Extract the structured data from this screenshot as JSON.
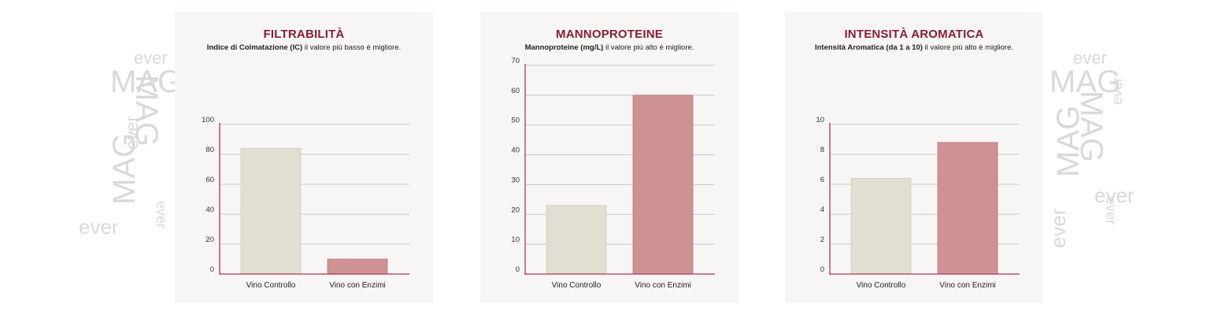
{
  "watermark": {
    "word1": "MAG",
    "word2": "ever",
    "color": "#d9d9d9"
  },
  "chart_data": [
    {
      "type": "bar",
      "title": "FILTRABILITÀ",
      "subtitle_bold": "Indice di Colmatazione (IC)",
      "subtitle_rest": " il valore più basso è migliore.",
      "categories": [
        "Vino Controllo",
        "Vino con Enzimi"
      ],
      "values": [
        84,
        10
      ],
      "colors": [
        "#e1dfd1",
        "#cf9293"
      ],
      "ylim": [
        0,
        100
      ],
      "yticks": [
        0,
        20,
        40,
        60,
        80,
        100
      ],
      "grid": true
    },
    {
      "type": "bar",
      "title": "MANNOPROTEINE",
      "subtitle_bold": "Mannoproteine (mg/L)",
      "subtitle_rest": " il valore più alto è migliore.",
      "categories": [
        "Vino Controllo",
        "Vino con Enzimi"
      ],
      "values": [
        23,
        60
      ],
      "colors": [
        "#e1dfd1",
        "#cf9293"
      ],
      "ylim": [
        0,
        70
      ],
      "yticks": [
        0,
        10,
        20,
        30,
        40,
        50,
        60,
        70
      ],
      "grid": true
    },
    {
      "type": "bar",
      "title": "INTENSITÀ AROMATICA",
      "subtitle_bold": "Intensità Aromatica (da 1 a 10)",
      "subtitle_rest": " il valore più alto è migliore.",
      "categories": [
        "Vino Controllo",
        "Vino con Enzimi"
      ],
      "values": [
        6.4,
        8.8
      ],
      "colors": [
        "#e1dfd1",
        "#cf9293"
      ],
      "ylim": [
        0,
        10
      ],
      "yticks": [
        0,
        2,
        4,
        6,
        8,
        10
      ],
      "grid": true
    }
  ],
  "axis_color": "#b0355a"
}
